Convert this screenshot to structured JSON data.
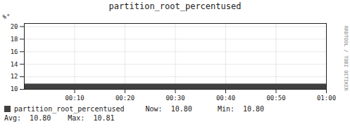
{
  "chart_data": {
    "type": "area",
    "title": "partition_root_percentused",
    "ylabel": "%°",
    "x": [
      0,
      3600
    ],
    "series": [
      {
        "name": "partition_root_percentused",
        "color": "#404040",
        "values": [
          10.805,
          10.805
        ]
      }
    ],
    "xlim": [
      0,
      3600
    ],
    "ylim": [
      10,
      20.5
    ],
    "xticks": [
      {
        "value": 600,
        "label": "00:10"
      },
      {
        "value": 1200,
        "label": "00:20"
      },
      {
        "value": 1800,
        "label": "00:30"
      },
      {
        "value": 2400,
        "label": "00:40"
      },
      {
        "value": 3000,
        "label": "00:50"
      },
      {
        "value": 3600,
        "label": "01:00"
      }
    ],
    "yticks": [
      10,
      12,
      14,
      16,
      18,
      20
    ],
    "grid": true,
    "legend": "bottom",
    "annotations": [
      "RRDTOOL / TOBI OETIKER",
      "Now:  10.80      Min:  10.80",
      "Avg:  10.80    Max:  10.81"
    ]
  }
}
